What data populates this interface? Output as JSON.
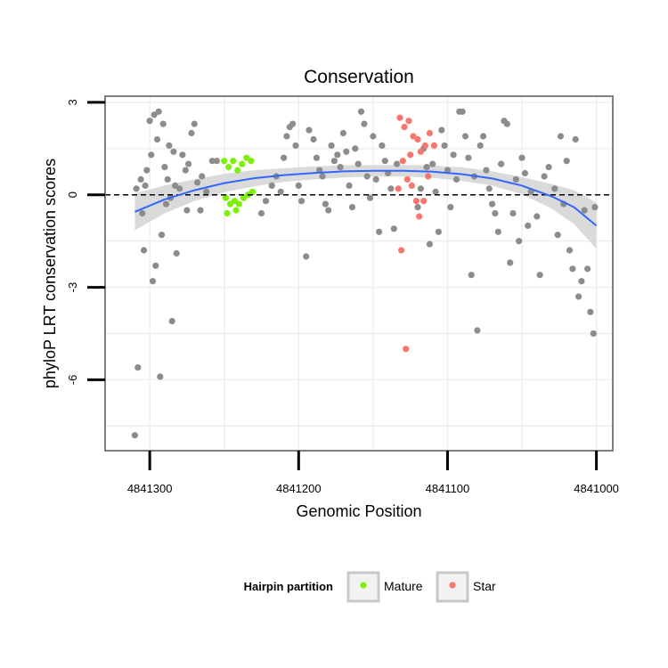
{
  "chart_data": {
    "type": "scatter",
    "title": "Conservation",
    "xlabel": "Genomic Position",
    "ylabel": "phyloP LRT conservation scores",
    "x_reversed": true,
    "xlim": [
      4841330,
      4840989
    ],
    "ylim": [
      -8.3,
      3.2
    ],
    "x_ticks": [
      4841300,
      4841200,
      4841100,
      4841000
    ],
    "x_tick_labels": [
      "4841300",
      "4841200",
      "4841100",
      "4841000"
    ],
    "y_ticks": [
      3,
      0,
      -3,
      -6
    ],
    "y_tick_labels": [
      "3",
      "0",
      "-3",
      "-6"
    ],
    "reference_line": {
      "y": 0,
      "style": "dashed"
    },
    "grid": true,
    "legend": {
      "title": "Hairpin partition",
      "position": "bottom",
      "entries": [
        {
          "name": "Mature",
          "color": "#7cf00a"
        },
        {
          "name": "Star",
          "color": "#f8766d"
        }
      ]
    },
    "colors": {
      "other": "#8c8c8c",
      "Mature": "#7cf00a",
      "Star": "#f8766d",
      "smooth": "#3366ff",
      "ribbon": "#d4d4d4"
    },
    "series": [
      {
        "name": "",
        "points": [
          [
            4841310,
            -7.8
          ],
          [
            4841308,
            -5.6
          ],
          [
            4841309,
            0.2
          ],
          [
            4841306,
            0.5
          ],
          [
            4841303,
            0.3
          ],
          [
            4841304,
            -1.8
          ],
          [
            4841298,
            -2.8
          ],
          [
            4841296,
            -2.3
          ],
          [
            4841293,
            -5.9
          ],
          [
            4841300,
            2.4
          ],
          [
            4841297,
            2.6
          ],
          [
            4841294,
            2.7
          ],
          [
            4841291,
            2.3
          ],
          [
            4841295,
            1.8
          ],
          [
            4841302,
            0.8
          ],
          [
            4841290,
            0.9
          ],
          [
            4841287,
            1.6
          ],
          [
            4841284,
            1.4
          ],
          [
            4841288,
            0.5
          ],
          [
            4841285,
            -4.1
          ],
          [
            4841282,
            -1.9
          ],
          [
            4841280,
            0.2
          ],
          [
            4841278,
            1.3
          ],
          [
            4841276,
            0.8
          ],
          [
            4841272,
            2.0
          ],
          [
            4841270,
            2.3
          ],
          [
            4841275,
            -0.5
          ],
          [
            4841268,
            0.4
          ],
          [
            4841265,
            0.6
          ],
          [
            4841262,
            0.1
          ],
          [
            4841258,
            1.1
          ],
          [
            4841255,
            1.1
          ],
          [
            4841292,
            -1.3
          ],
          [
            4841289,
            -0.3
          ],
          [
            4841283,
            0.3
          ],
          [
            4841305,
            -0.6
          ],
          [
            4841299,
            1.3
          ],
          [
            4841286,
            -0.1
          ],
          [
            4841274,
            1.0
          ],
          [
            4841266,
            -0.5
          ],
          [
            4841225,
            -0.6
          ],
          [
            4841222,
            -0.2
          ],
          [
            4841218,
            0.3
          ],
          [
            4841215,
            0.6
          ],
          [
            4841212,
            0.1
          ],
          [
            4841210,
            1.2
          ],
          [
            4841208,
            1.9
          ],
          [
            4841206,
            2.2
          ],
          [
            4841204,
            2.3
          ],
          [
            4841202,
            1.6
          ],
          [
            4841200,
            0.3
          ],
          [
            4841198,
            -0.2
          ],
          [
            4841195,
            -2.0
          ],
          [
            4841193,
            2.1
          ],
          [
            4841190,
            1.8
          ],
          [
            4841188,
            1.2
          ],
          [
            4841186,
            0.8
          ],
          [
            4841184,
            0.6
          ],
          [
            4841182,
            -0.3
          ],
          [
            4841180,
            -0.5
          ],
          [
            4841178,
            1.6
          ],
          [
            4841176,
            1.1
          ],
          [
            4841174,
            1.3
          ],
          [
            4841172,
            0.9
          ],
          [
            4841170,
            2.0
          ],
          [
            4841168,
            1.4
          ],
          [
            4841166,
            0.3
          ],
          [
            4841164,
            -0.4
          ],
          [
            4841162,
            1.5
          ],
          [
            4841160,
            1.0
          ],
          [
            4841158,
            2.7
          ],
          [
            4841156,
            2.3
          ],
          [
            4841154,
            0.6
          ],
          [
            4841152,
            -0.1
          ],
          [
            4841150,
            1.9
          ],
          [
            4841148,
            0.5
          ],
          [
            4841146,
            -1.2
          ],
          [
            4841144,
            1.6
          ],
          [
            4841142,
            1.1
          ],
          [
            4841140,
            0.7
          ],
          [
            4841138,
            0.2
          ],
          [
            4841136,
            -1.1
          ],
          [
            4841134,
            1.0
          ],
          [
            4841120,
            -0.4
          ],
          [
            4841118,
            0.2
          ],
          [
            4841116,
            1.5
          ],
          [
            4841114,
            0.9
          ],
          [
            4841112,
            -1.6
          ],
          [
            4841110,
            1.0
          ],
          [
            4841108,
            0.1
          ],
          [
            4841106,
            -1.2
          ],
          [
            4841104,
            2.1
          ],
          [
            4841102,
            1.6
          ],
          [
            4841100,
            0.8
          ],
          [
            4841098,
            -0.4
          ],
          [
            4841096,
            1.3
          ],
          [
            4841094,
            0.5
          ],
          [
            4841092,
            2.7
          ],
          [
            4841090,
            2.7
          ],
          [
            4841088,
            1.9
          ],
          [
            4841086,
            1.2
          ],
          [
            4841084,
            -2.6
          ],
          [
            4841082,
            0.6
          ],
          [
            4841080,
            -4.4
          ],
          [
            4841078,
            1.6
          ],
          [
            4841076,
            1.9
          ],
          [
            4841074,
            0.8
          ],
          [
            4841072,
            0.2
          ],
          [
            4841070,
            -0.3
          ],
          [
            4841068,
            -0.6
          ],
          [
            4841066,
            -1.2
          ],
          [
            4841064,
            1.0
          ],
          [
            4841062,
            2.4
          ],
          [
            4841060,
            2.3
          ],
          [
            4841058,
            -2.2
          ],
          [
            4841056,
            -0.6
          ],
          [
            4841054,
            0.5
          ],
          [
            4841052,
            -1.5
          ],
          [
            4841050,
            1.2
          ],
          [
            4841048,
            0.7
          ],
          [
            4841046,
            -1.0
          ],
          [
            4841044,
            0.1
          ],
          [
            4841040,
            -0.7
          ],
          [
            4841038,
            -2.6
          ],
          [
            4841035,
            0.6
          ],
          [
            4841032,
            0.9
          ],
          [
            4841028,
            0.2
          ],
          [
            4841026,
            -1.3
          ],
          [
            4841024,
            1.9
          ],
          [
            4841022,
            -0.3
          ],
          [
            4841020,
            1.1
          ],
          [
            4841018,
            -1.8
          ],
          [
            4841016,
            -2.4
          ],
          [
            4841014,
            1.8
          ],
          [
            4841012,
            -3.3
          ],
          [
            4841010,
            -2.8
          ],
          [
            4841008,
            -0.5
          ],
          [
            4841006,
            -2.4
          ],
          [
            4841004,
            -3.8
          ],
          [
            4841002,
            -4.5
          ],
          [
            4841001,
            -0.4
          ]
        ]
      },
      {
        "name": "Mature",
        "points": [
          [
            4841250,
            1.1
          ],
          [
            4841247,
            0.9
          ],
          [
            4841244,
            1.1
          ],
          [
            4841241,
            0.8
          ],
          [
            4841238,
            1.0
          ],
          [
            4841235,
            1.2
          ],
          [
            4841232,
            1.1
          ],
          [
            4841249,
            -0.1
          ],
          [
            4841246,
            -0.3
          ],
          [
            4841243,
            -0.2
          ],
          [
            4841240,
            -0.3
          ],
          [
            4841237,
            -0.1
          ],
          [
            4841234,
            0.0
          ],
          [
            4841231,
            0.1
          ],
          [
            4841248,
            -0.6
          ],
          [
            4841242,
            -0.5
          ]
        ]
      },
      {
        "name": "Star",
        "points": [
          [
            4841132,
            2.5
          ],
          [
            4841129,
            2.2
          ],
          [
            4841126,
            2.4
          ],
          [
            4841123,
            1.9
          ],
          [
            4841120,
            1.8
          ],
          [
            4841118,
            1.4
          ],
          [
            4841115,
            1.6
          ],
          [
            4841112,
            2.0
          ],
          [
            4841109,
            1.6
          ],
          [
            4841130,
            1.1
          ],
          [
            4841127,
            0.5
          ],
          [
            4841124,
            0.3
          ],
          [
            4841121,
            -0.2
          ],
          [
            4841133,
            0.2
          ],
          [
            4841128,
            -5.0
          ],
          [
            4841131,
            -1.8
          ],
          [
            4841119,
            -0.7
          ],
          [
            4841116,
            -0.2
          ],
          [
            4841113,
            0.6
          ],
          [
            4841125,
            1.3
          ]
        ]
      }
    ],
    "smooth": {
      "x": [
        4841310,
        4841290,
        4841270,
        4841250,
        4841230,
        4841210,
        4841190,
        4841170,
        4841150,
        4841130,
        4841110,
        4841090,
        4841070,
        4841050,
        4841030,
        4841015,
        4841000
      ],
      "y": [
        -0.55,
        -0.15,
        0.15,
        0.38,
        0.54,
        0.64,
        0.71,
        0.76,
        0.78,
        0.78,
        0.75,
        0.67,
        0.53,
        0.3,
        -0.05,
        -0.4,
        -1.0
      ],
      "lower": [
        -1.15,
        -0.6,
        -0.2,
        0.08,
        0.28,
        0.42,
        0.5,
        0.56,
        0.59,
        0.59,
        0.55,
        0.45,
        0.3,
        0.02,
        -0.45,
        -0.95,
        -1.75
      ],
      "upper": [
        0.05,
        0.3,
        0.5,
        0.68,
        0.8,
        0.86,
        0.92,
        0.96,
        0.97,
        0.97,
        0.95,
        0.89,
        0.76,
        0.58,
        0.35,
        0.15,
        -0.25
      ]
    }
  }
}
